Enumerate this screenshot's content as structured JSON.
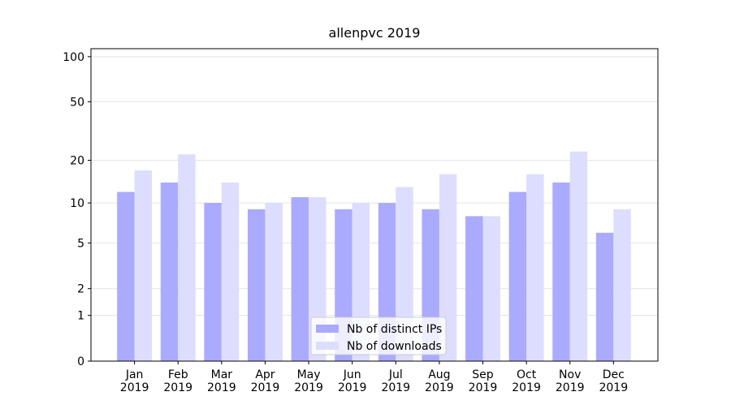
{
  "chart_data": {
    "type": "bar",
    "title": "allenpvc 2019",
    "categories": [
      "Jan\n2019",
      "Feb\n2019",
      "Mar\n2019",
      "Apr\n2019",
      "May\n2019",
      "Jun\n2019",
      "Jul\n2019",
      "Aug\n2019",
      "Sep\n2019",
      "Oct\n2019",
      "Nov\n2019",
      "Dec\n2019"
    ],
    "series": [
      {
        "name": "Nb of distinct IPs",
        "color": "#aaaaff",
        "values": [
          12,
          14,
          10,
          9,
          11,
          9,
          10,
          9,
          8,
          12,
          14,
          6
        ]
      },
      {
        "name": "Nb of downloads",
        "color": "#ddddff",
        "values": [
          17,
          22,
          14,
          10,
          11,
          10,
          13,
          16,
          8,
          16,
          23,
          9
        ]
      }
    ],
    "yscale": "log1p",
    "ylim": [
      0,
      113
    ],
    "yticks": [
      0,
      1,
      2,
      5,
      10,
      20,
      50,
      100
    ],
    "grid": true,
    "legend": "lower center"
  }
}
